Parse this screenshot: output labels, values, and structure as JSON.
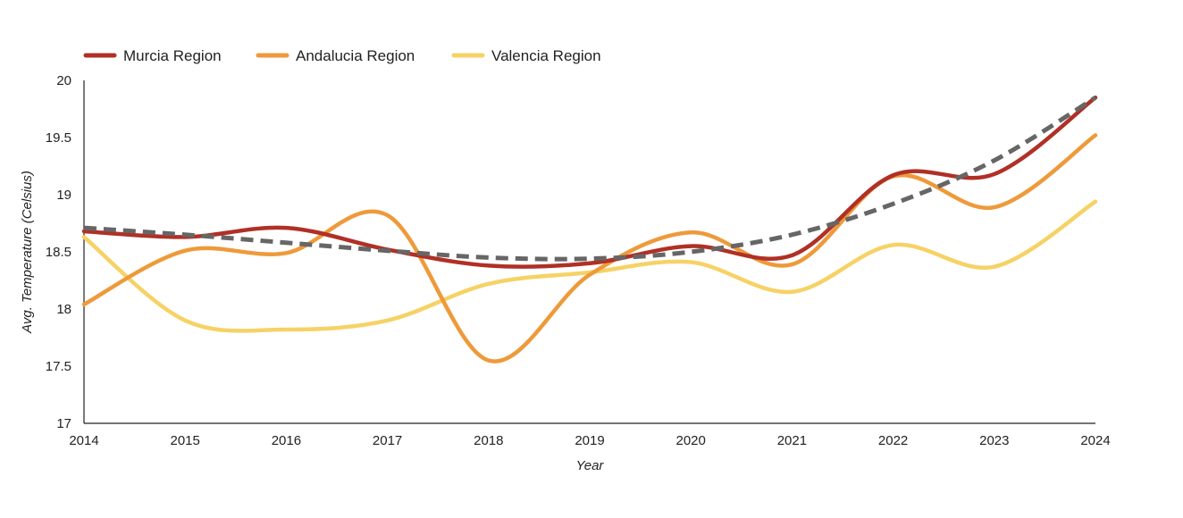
{
  "chart_data": {
    "type": "line",
    "xlabel": "Year",
    "ylabel": "Avg. Temperature (Celsius)",
    "x": [
      2014,
      2015,
      2016,
      2017,
      2018,
      2019,
      2020,
      2021,
      2022,
      2023,
      2024
    ],
    "ylim": [
      17,
      20
    ],
    "yticks": [
      "17",
      "17.5",
      "18",
      "18.5",
      "19",
      "19.5",
      "20"
    ],
    "xticks": [
      "2014",
      "2015",
      "2016",
      "2017",
      "2018",
      "2019",
      "2020",
      "2021",
      "2022",
      "2023",
      "2024"
    ],
    "legend_position": "top-left",
    "grid": false,
    "series": [
      {
        "name": "Murcia Region",
        "color": "#b03026",
        "values": [
          18.68,
          18.63,
          18.71,
          18.52,
          18.38,
          18.4,
          18.55,
          18.47,
          19.17,
          19.18,
          19.85
        ]
      },
      {
        "name": "Andalucia Region",
        "color": "#ee9a3a",
        "values": [
          18.04,
          18.51,
          18.49,
          18.82,
          17.55,
          18.3,
          18.67,
          18.39,
          19.16,
          18.89,
          19.52
        ]
      },
      {
        "name": "Valencia Region",
        "color": "#f6d266",
        "values": [
          18.63,
          17.9,
          17.82,
          17.9,
          18.22,
          18.32,
          18.41,
          18.15,
          18.56,
          18.37,
          18.94
        ]
      }
    ],
    "trendline": {
      "style": "dashed",
      "color": "#666666",
      "values": [
        18.71,
        18.65,
        18.58,
        18.51,
        18.45,
        18.44,
        18.5,
        18.65,
        18.92,
        19.3,
        19.85
      ]
    }
  }
}
